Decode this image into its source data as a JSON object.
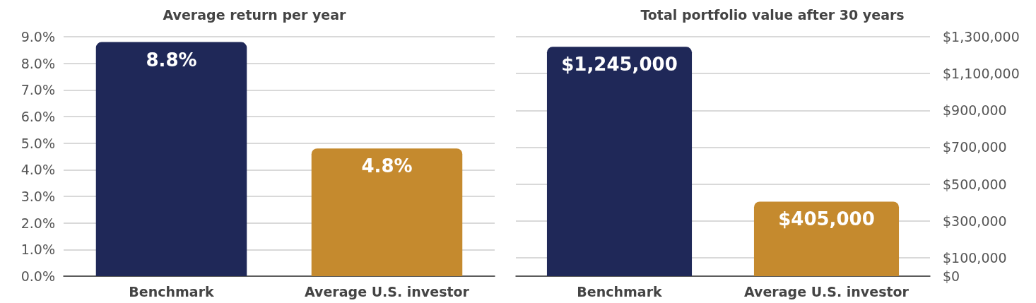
{
  "chart_data": [
    {
      "type": "bar",
      "title": "Average return per year",
      "categories": [
        "Benchmark",
        "Average U.S. investor"
      ],
      "values": [
        8.8,
        4.8
      ],
      "colors": [
        "#1f2858",
        "#c58a2e"
      ],
      "value_labels": [
        "8.8%",
        "4.8%"
      ],
      "ylim": [
        0,
        9
      ],
      "yticks": [
        {
          "value": 0,
          "label": "0.0%"
        },
        {
          "value": 1,
          "label": "1.0%"
        },
        {
          "value": 2,
          "label": "2.0%"
        },
        {
          "value": 3,
          "label": "3.0%"
        },
        {
          "value": 4,
          "label": "4.0%"
        },
        {
          "value": 5,
          "label": "5.0%"
        },
        {
          "value": 6,
          "label": "6.0%"
        },
        {
          "value": 7,
          "label": "7.0%"
        },
        {
          "value": 8,
          "label": "8.0%"
        },
        {
          "value": 9,
          "label": "9.0%"
        }
      ],
      "grid": "y"
    },
    {
      "type": "bar",
      "title": "Total portfolio value after 30 years",
      "categories": [
        "Benchmark",
        "Average U.S. investor"
      ],
      "values": [
        1245000,
        405000
      ],
      "colors": [
        "#1f2858",
        "#c58a2e"
      ],
      "value_labels": [
        "$1,245,000",
        "$405,000"
      ],
      "ylim": [
        0,
        1300000
      ],
      "yticks": [
        {
          "value": 0,
          "label": "$0"
        },
        {
          "value": 100000,
          "label": "$100,000"
        },
        {
          "value": 300000,
          "label": "$300,000"
        },
        {
          "value": 500000,
          "label": "$500,000"
        },
        {
          "value": 700000,
          "label": "$700,000"
        },
        {
          "value": 900000,
          "label": "$900,000"
        },
        {
          "value": 1100000,
          "label": "$1,100,000"
        },
        {
          "value": 1300000,
          "label": "$1,300,000"
        }
      ],
      "grid": "y"
    }
  ]
}
